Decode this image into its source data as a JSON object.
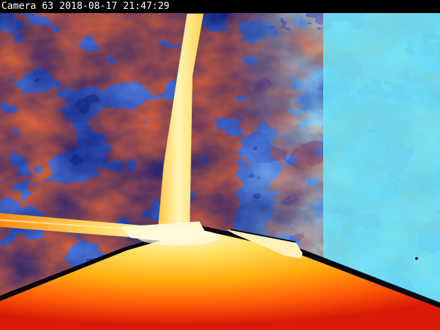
{
  "overlay": {
    "camera_label": "Camera 63",
    "date": "2018-08-17",
    "time": "21:47:29"
  },
  "palette": {
    "hot_white": "#fffbe0",
    "hot_yellow": "#ffe060",
    "warm_orange": "#ff9a10",
    "warm_red": "#ff2a08",
    "dark": "#070712",
    "cool_navy": "#0a1a78",
    "cool_blue": "#1c46e0",
    "cold_light_blue": "#4fb6f0",
    "cold_cyan": "#6ee6f8"
  }
}
